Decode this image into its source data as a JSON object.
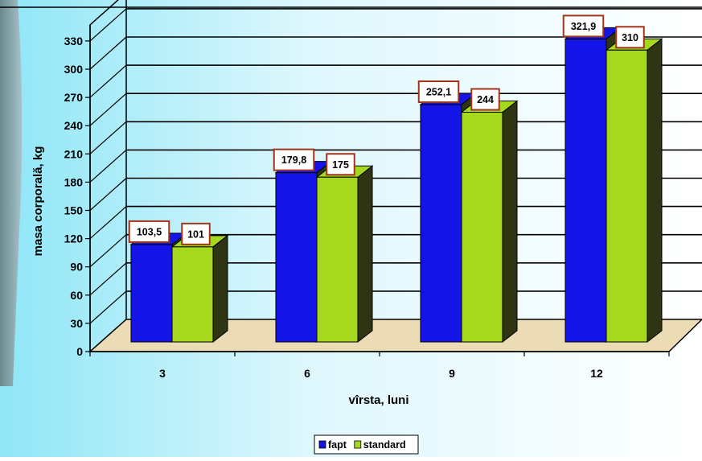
{
  "chart_data": {
    "type": "bar",
    "categories": [
      "3",
      "6",
      "9",
      "12"
    ],
    "series": [
      {
        "name": "fapt",
        "values": [
          103.5,
          179.8,
          252.1,
          321.9
        ],
        "labels": [
          "103,5",
          "179,8",
          "252,1",
          "321,9"
        ],
        "color": "#1414e6"
      },
      {
        "name": "standard",
        "values": [
          101,
          175,
          244,
          310
        ],
        "labels": [
          "101",
          "175",
          "244",
          "310"
        ],
        "color": "#a6d81e"
      }
    ],
    "xlabel": "vîrsta, luni",
    "ylabel": "masa corporală, kg",
    "ylim": [
      0,
      330
    ],
    "yticks": [
      0,
      30,
      60,
      90,
      120,
      150,
      180,
      210,
      240,
      270,
      300,
      330
    ],
    "grid": true,
    "legend_position": "bottom"
  }
}
